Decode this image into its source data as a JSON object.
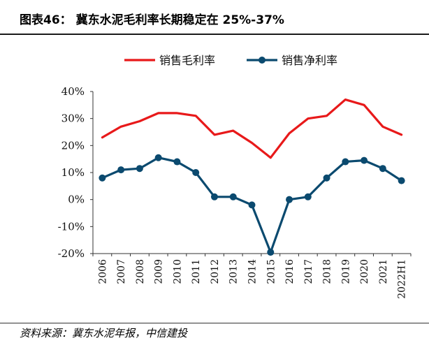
{
  "figure": {
    "title": "图表46：   冀东水泥毛利率长期稳定在 25%-37%",
    "source": "资料来源：冀东水泥年报，中信建投"
  },
  "colors": {
    "gross_margin": "#e8191a",
    "net_margin": "#0b4a6f",
    "axis": "#333333"
  },
  "chart_data": {
    "type": "line",
    "title": "",
    "xlabel": "",
    "ylabel": "",
    "categories": [
      "2006",
      "2007",
      "2008",
      "2009",
      "2010",
      "2011",
      "2012",
      "2013",
      "2014",
      "2015",
      "2016",
      "2017",
      "2018",
      "2019",
      "2020",
      "2021",
      "2022H1"
    ],
    "y_ticks": [
      "40%",
      "30%",
      "20%",
      "10%",
      "0%",
      "-10%",
      "-20%"
    ],
    "ylim": [
      -20,
      40
    ],
    "grid": false,
    "legend_position": "top-center",
    "series": [
      {
        "name": "销售毛利率",
        "marker": "none",
        "values": [
          23.0,
          27.0,
          29.0,
          32.0,
          32.0,
          31.0,
          24.0,
          25.5,
          21.0,
          15.5,
          24.5,
          30.0,
          31.0,
          37.0,
          35.0,
          27.0,
          24.0
        ]
      },
      {
        "name": "销售净利率",
        "marker": "circle",
        "values": [
          8.0,
          11.0,
          11.5,
          15.5,
          14.0,
          10.0,
          1.0,
          1.0,
          -2.0,
          -19.5,
          0.0,
          1.0,
          8.0,
          14.0,
          14.5,
          11.5,
          7.0
        ]
      }
    ]
  }
}
